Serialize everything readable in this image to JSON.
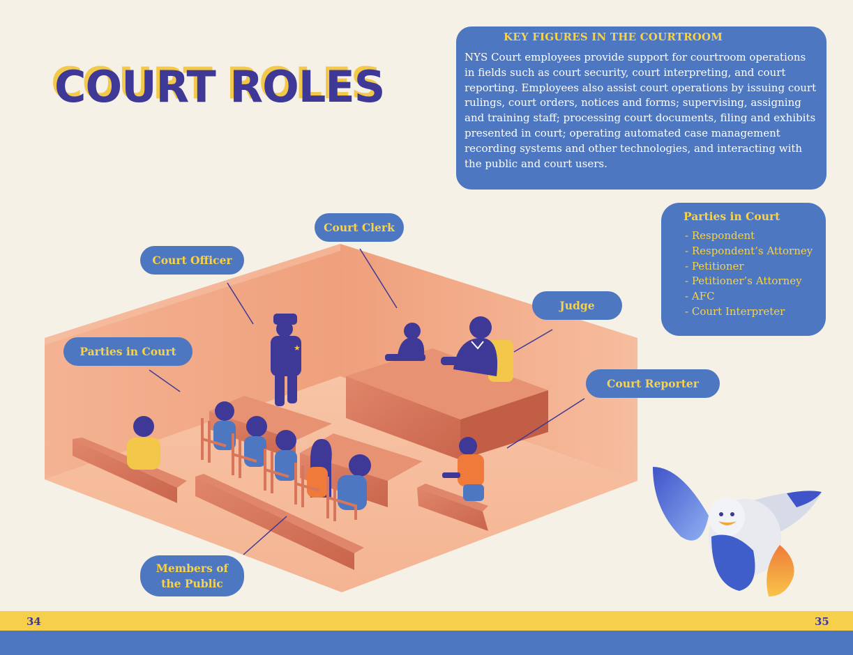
{
  "title": "COURT ROLES",
  "key_figures": {
    "heading": "KEY FIGURES IN THE COURTROOM",
    "body": "NYS Court employees provide support for courtroom operations in fields such as court security, court interpreting, and court reporting. Employees also assist court operations by issuing court rulings, court orders, notices and forms; supervising, assigning and training staff; processing court documents, filing and exhibits presented in court; operating automated case management recording systems and other technologies, and interacting with the public and court users."
  },
  "parties_box": {
    "heading": "Parties in Court",
    "items": [
      "- Respondent",
      "- Respondent’s Attorney",
      "- Petitioner",
      "- Petitioner’s Attorney",
      "- AFC",
      "- Court Interpreter"
    ]
  },
  "labels": {
    "court_clerk": "Court Clerk",
    "court_officer": "Court Officer",
    "judge": "Judge",
    "parties_in_court": "Parties in Court",
    "court_reporter": "Court Reporter",
    "members_line1": "Members of",
    "members_line2": "the Public"
  },
  "page_numbers": {
    "left": "34",
    "right": "35"
  },
  "colors": {
    "background": "#f5f1e6",
    "primary_blue": "#4d77c0",
    "navy": "#3e3896",
    "yellow": "#f6d04a",
    "wall": "#f2a883",
    "wood": "#d97a5c",
    "orange": "#f07a3a"
  },
  "icons": [
    "courtroom-illustration",
    "seagull-mascot-icon",
    "badge-star-icon"
  ]
}
